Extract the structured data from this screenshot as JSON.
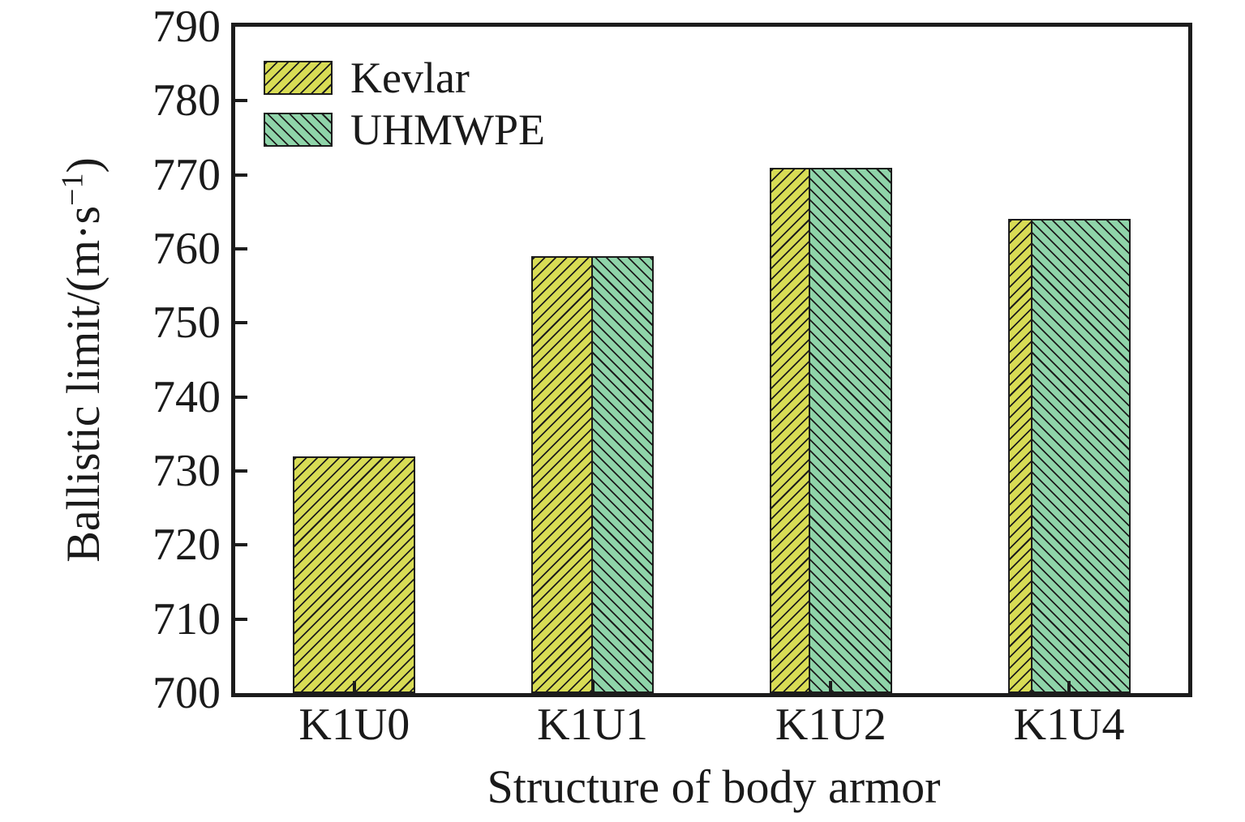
{
  "chart_data": {
    "type": "bar",
    "title": "",
    "categories": [
      "K1U0",
      "K1U1",
      "K1U2",
      "K1U4"
    ],
    "values": [
      732,
      759,
      771,
      764
    ],
    "kevlar_width_fraction": [
      1,
      0.5,
      0.3333,
      0.2
    ],
    "series": [
      {
        "name": "Kevlar",
        "color": "#d8dc55",
        "hatch": "/"
      },
      {
        "name": "UHMWPE",
        "color": "#8fd4a9",
        "hatch": "\\"
      }
    ],
    "xlabel": "Structure of body armor",
    "ylabel": "Ballistic limit/(m·s⁻¹)",
    "ylabel_parts": {
      "main": "Ballistic limit/(m·s",
      "sup": "−1",
      "close": ")"
    },
    "ylim": [
      700,
      790
    ],
    "yticks": [
      700,
      710,
      720,
      730,
      740,
      750,
      760,
      770,
      780,
      790
    ],
    "grid": false,
    "legend_position": "top-left",
    "note": "Each bar is one structure; bar width is split between Kevlar (left, '/' hatch) and UHMWPE (right, '\\' hatch) proportional to layer ratio; both segments share the same height (ballistic limit)."
  },
  "colors": {
    "axis": "#1c1c1c",
    "text": "#1a1a1a",
    "kevlar_fill": "#d8dc55",
    "uhmwpe_fill": "#8fd4a9",
    "background": "#ffffff"
  }
}
